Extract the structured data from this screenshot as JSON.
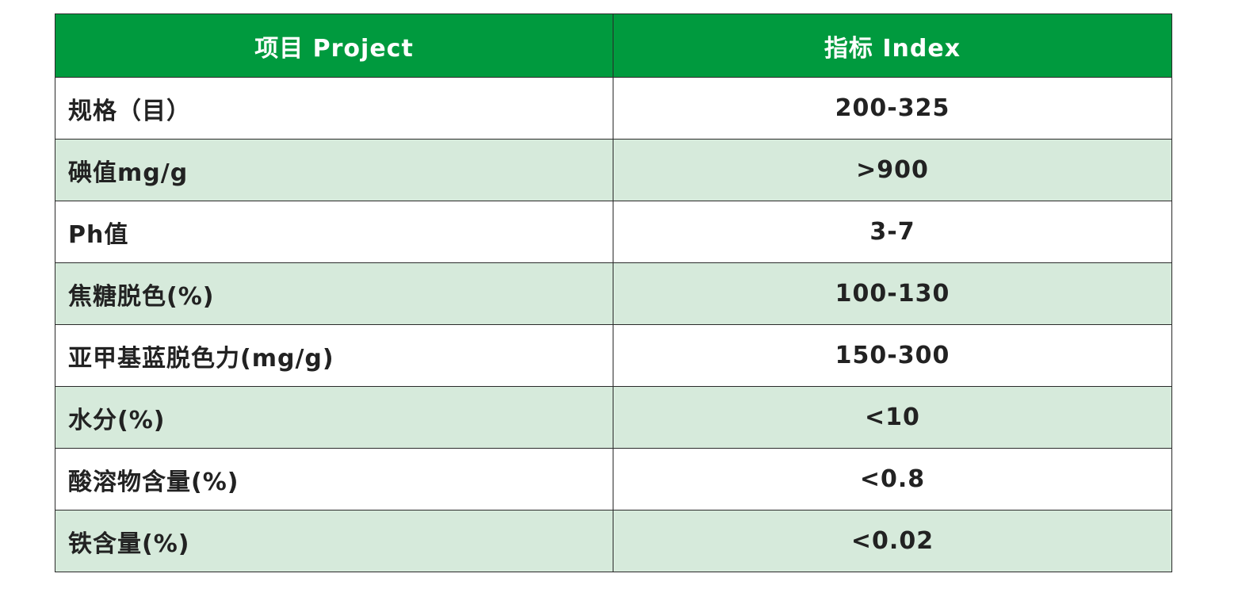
{
  "table": {
    "header": {
      "project": "项目 Project",
      "index": "指标 Index"
    },
    "rows": [
      {
        "item": "规格（目）",
        "value": "200-325"
      },
      {
        "item": "碘值mg/g",
        "value": ">900"
      },
      {
        "item": "Ph值",
        "value": "3-7"
      },
      {
        "item": "焦糖脱色(%)",
        "value": "100-130"
      },
      {
        "item": "亚甲基蓝脱色力(mg/g)",
        "value": "150-300"
      },
      {
        "item": "水分(%)",
        "value": "<10"
      },
      {
        "item": "酸溶物含量(%)",
        "value": "<0.8"
      },
      {
        "item": "铁含量(%)",
        "value": "<0.02"
      }
    ]
  },
  "colors": {
    "header_bg": "#009a3e",
    "header_text": "#ffffff",
    "shaded_row_bg": "#d6eadb",
    "plain_row_bg": "#ffffff",
    "border": "#2a2a2a"
  }
}
